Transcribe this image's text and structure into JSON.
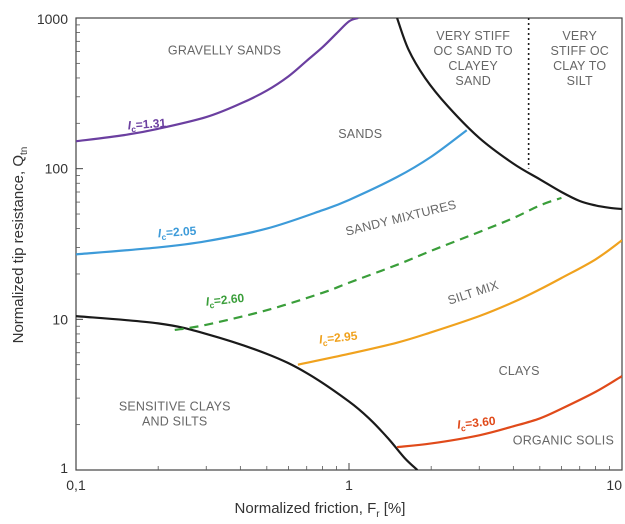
{
  "chart_data": {
    "type": "line",
    "title": "",
    "xlabel": "Normalized friction, F",
    "xlabel_sub": "r",
    "xlabel_suffix": " [%]",
    "ylabel": "Normalized tip resistance, Q",
    "ylabel_sub": "tn",
    "xscale": "log",
    "yscale": "log",
    "xlim": [
      0.1,
      10
    ],
    "ylim": [
      1,
      1000
    ],
    "grid": false,
    "x_tick_labels": [
      {
        "value": 0.1,
        "label": "0,1"
      },
      {
        "value": 1,
        "label": "1"
      },
      {
        "value": 10,
        "label": "10"
      }
    ],
    "y_tick_labels": [
      {
        "value": 1,
        "label": "1"
      },
      {
        "value": 10,
        "label": "10"
      },
      {
        "value": 100,
        "label": "100"
      },
      {
        "value": 1000,
        "label": "1000"
      }
    ],
    "colors": {
      "ic_131": "#6b3fa0",
      "ic_205": "#3d9bd9",
      "ic_260": "#3a9e3a",
      "ic_295": "#f0a21e",
      "ic_360": "#e04a1a",
      "boundary": "#1a1a1a",
      "region_text": "#666666"
    },
    "series": [
      {
        "key": "ic_131",
        "label_prefix": "I",
        "label_sub": "c",
        "label_value": "=1.31",
        "style": "solid",
        "x": [
          0.1,
          0.15,
          0.2,
          0.3,
          0.4,
          0.5,
          0.6,
          0.7,
          0.8,
          0.9,
          1.0,
          1.08
        ],
        "y": [
          152,
          167,
          184,
          220,
          270,
          330,
          410,
          520,
          640,
          790,
          950,
          1000
        ]
      },
      {
        "key": "ic_205",
        "label_prefix": "I",
        "label_sub": "c",
        "label_value": "=2.05",
        "style": "solid",
        "x": [
          0.1,
          0.2,
          0.3,
          0.5,
          0.8,
          1.0,
          1.5,
          2.0,
          2.7
        ],
        "y": [
          27,
          30,
          33,
          40,
          53,
          62,
          88,
          120,
          180
        ]
      },
      {
        "key": "ic_260",
        "label_prefix": "I",
        "label_sub": "c",
        "label_value": "=2.60",
        "style": "dashed",
        "x": [
          0.23,
          0.3,
          0.5,
          0.8,
          1.0,
          1.5,
          2.0,
          3.0,
          4.0,
          5.0,
          6.0
        ],
        "y": [
          8.5,
          9.2,
          11.5,
          15,
          17.5,
          23,
          28.5,
          38,
          47,
          57,
          64
        ]
      },
      {
        "key": "ic_295",
        "label_prefix": "I",
        "label_sub": "c",
        "label_value": "=2.95",
        "style": "solid",
        "x": [
          0.65,
          1.0,
          1.5,
          2.0,
          3.0,
          4.0,
          5.0,
          6.0,
          8.0,
          10.0
        ],
        "y": [
          5.0,
          5.9,
          7.0,
          8.2,
          10.5,
          13.0,
          15.8,
          18.8,
          25.0,
          33.5
        ]
      },
      {
        "key": "ic_360",
        "label_prefix": "I",
        "label_sub": "c",
        "label_value": "=3.60",
        "style": "solid",
        "x": [
          1.5,
          2.0,
          3.0,
          4.0,
          5.0,
          6.0,
          8.0,
          10.0
        ],
        "y": [
          1.42,
          1.5,
          1.7,
          1.95,
          2.2,
          2.55,
          3.3,
          4.2
        ]
      }
    ],
    "boundaries": [
      {
        "key": "lower_left",
        "style": "solid",
        "x": [
          0.1,
          0.2,
          0.3,
          0.5,
          0.7,
          1.0,
          1.2,
          1.4,
          1.6,
          1.78
        ],
        "y": [
          10.5,
          9.4,
          8.0,
          5.9,
          4.4,
          2.85,
          2.15,
          1.6,
          1.2,
          1.0
        ]
      },
      {
        "key": "upper_right",
        "style": "solid",
        "x": [
          1.5,
          1.65,
          1.9,
          2.3,
          3.0,
          4.0,
          5.0,
          6.0,
          7.0,
          8.0,
          9.0,
          10.0
        ],
        "y": [
          1000,
          620,
          400,
          260,
          160,
          108,
          85,
          70,
          61,
          57,
          55,
          54
        ]
      },
      {
        "key": "divider",
        "style": "dotted",
        "x": [
          4.55,
          4.55
        ],
        "y": [
          1000,
          100
        ]
      }
    ],
    "region_labels": [
      {
        "lines": [
          "GRAVELLY SANDS"
        ],
        "x": 0.35,
        "y": 610
      },
      {
        "lines": [
          "SANDS"
        ],
        "x": 1.1,
        "y": 170
      },
      {
        "lines": [
          "SANDY MIXTURES"
        ],
        "x": 1.55,
        "y": 47,
        "rotate": -14
      },
      {
        "lines": [
          "SILT MIX"
        ],
        "x": 2.85,
        "y": 15,
        "rotate": -18
      },
      {
        "lines": [
          "CLAYS"
        ],
        "x": 4.2,
        "y": 4.55
      },
      {
        "lines": [
          "SENSITIVE CLAYS",
          "AND SILTS"
        ],
        "x": 0.23,
        "y": 2.35
      },
      {
        "lines": [
          "ORGANIC SOLIS"
        ],
        "x": 6.1,
        "y": 1.57
      },
      {
        "lines": [
          "VERY STIFF",
          "OC SAND TO",
          "CLAYEY",
          "SAND"
        ],
        "x": 2.85,
        "y": 540
      },
      {
        "lines": [
          "VERY",
          "STIFF OC",
          "CLAY TO",
          "SILT"
        ],
        "x": 7.0,
        "y": 540
      }
    ],
    "curve_labels": [
      {
        "series": "ic_131",
        "x": 0.155,
        "y": 182,
        "rotate": -4
      },
      {
        "series": "ic_205",
        "x": 0.2,
        "y": 35,
        "rotate": -4
      },
      {
        "series": "ic_260",
        "x": 0.3,
        "y": 12.3,
        "rotate": -6
      },
      {
        "series": "ic_295",
        "x": 0.78,
        "y": 6.9,
        "rotate": -6
      },
      {
        "series": "ic_360",
        "x": 2.5,
        "y": 1.88,
        "rotate": -6
      }
    ]
  }
}
